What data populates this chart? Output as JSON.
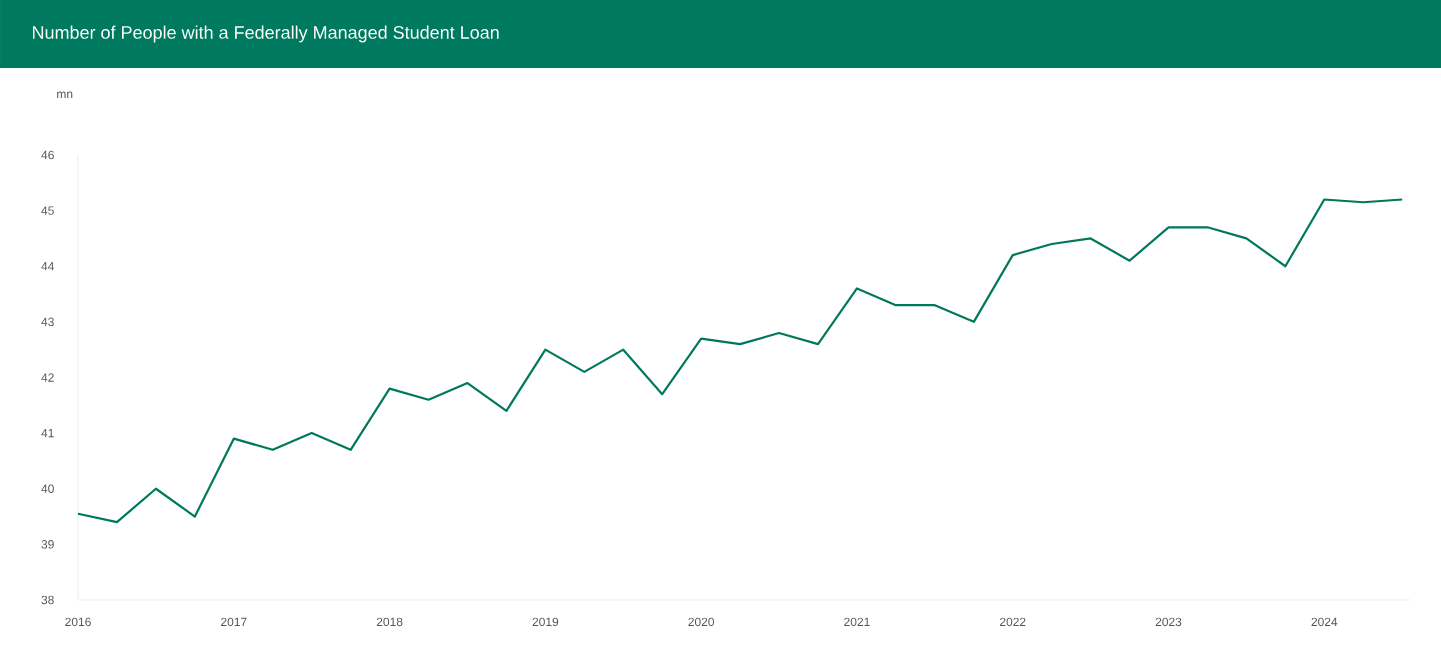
{
  "chart_data": {
    "type": "line",
    "title": "Number of People with a Federally Managed Student Loan",
    "ylabel": "mn",
    "x": [
      2016,
      2016.25,
      2016.5,
      2016.75,
      2017,
      2017.25,
      2017.5,
      2017.75,
      2018,
      2018.25,
      2018.5,
      2018.75,
      2019,
      2019.25,
      2019.5,
      2019.75,
      2020,
      2020.25,
      2020.5,
      2020.75,
      2021,
      2021.25,
      2021.5,
      2021.75,
      2022,
      2022.25,
      2022.5,
      2022.75,
      2023,
      2023.25,
      2023.5,
      2023.75,
      2024,
      2024.25,
      2024.5
    ],
    "series": [
      {
        "color": "#00785c",
        "values": [
          39.55,
          39.4,
          40.0,
          39.5,
          40.9,
          40.7,
          41.0,
          40.7,
          41.8,
          41.6,
          41.9,
          41.4,
          42.5,
          42.1,
          42.5,
          41.7,
          42.7,
          42.6,
          42.8,
          42.6,
          43.6,
          43.3,
          43.3,
          43.0,
          44.2,
          44.4,
          44.5,
          44.1,
          44.7,
          44.7,
          44.5,
          44.0,
          45.2,
          45.15,
          45.2
        ]
      }
    ],
    "xlim": [
      2016,
      2024.55
    ],
    "xticks": [
      2016,
      2017,
      2018,
      2019,
      2020,
      2021,
      2022,
      2023,
      2024
    ],
    "ylim": [
      38,
      46
    ],
    "yticks": [
      38,
      39,
      40,
      41,
      42,
      43,
      44,
      45,
      46
    ],
    "line_style": "solid"
  }
}
